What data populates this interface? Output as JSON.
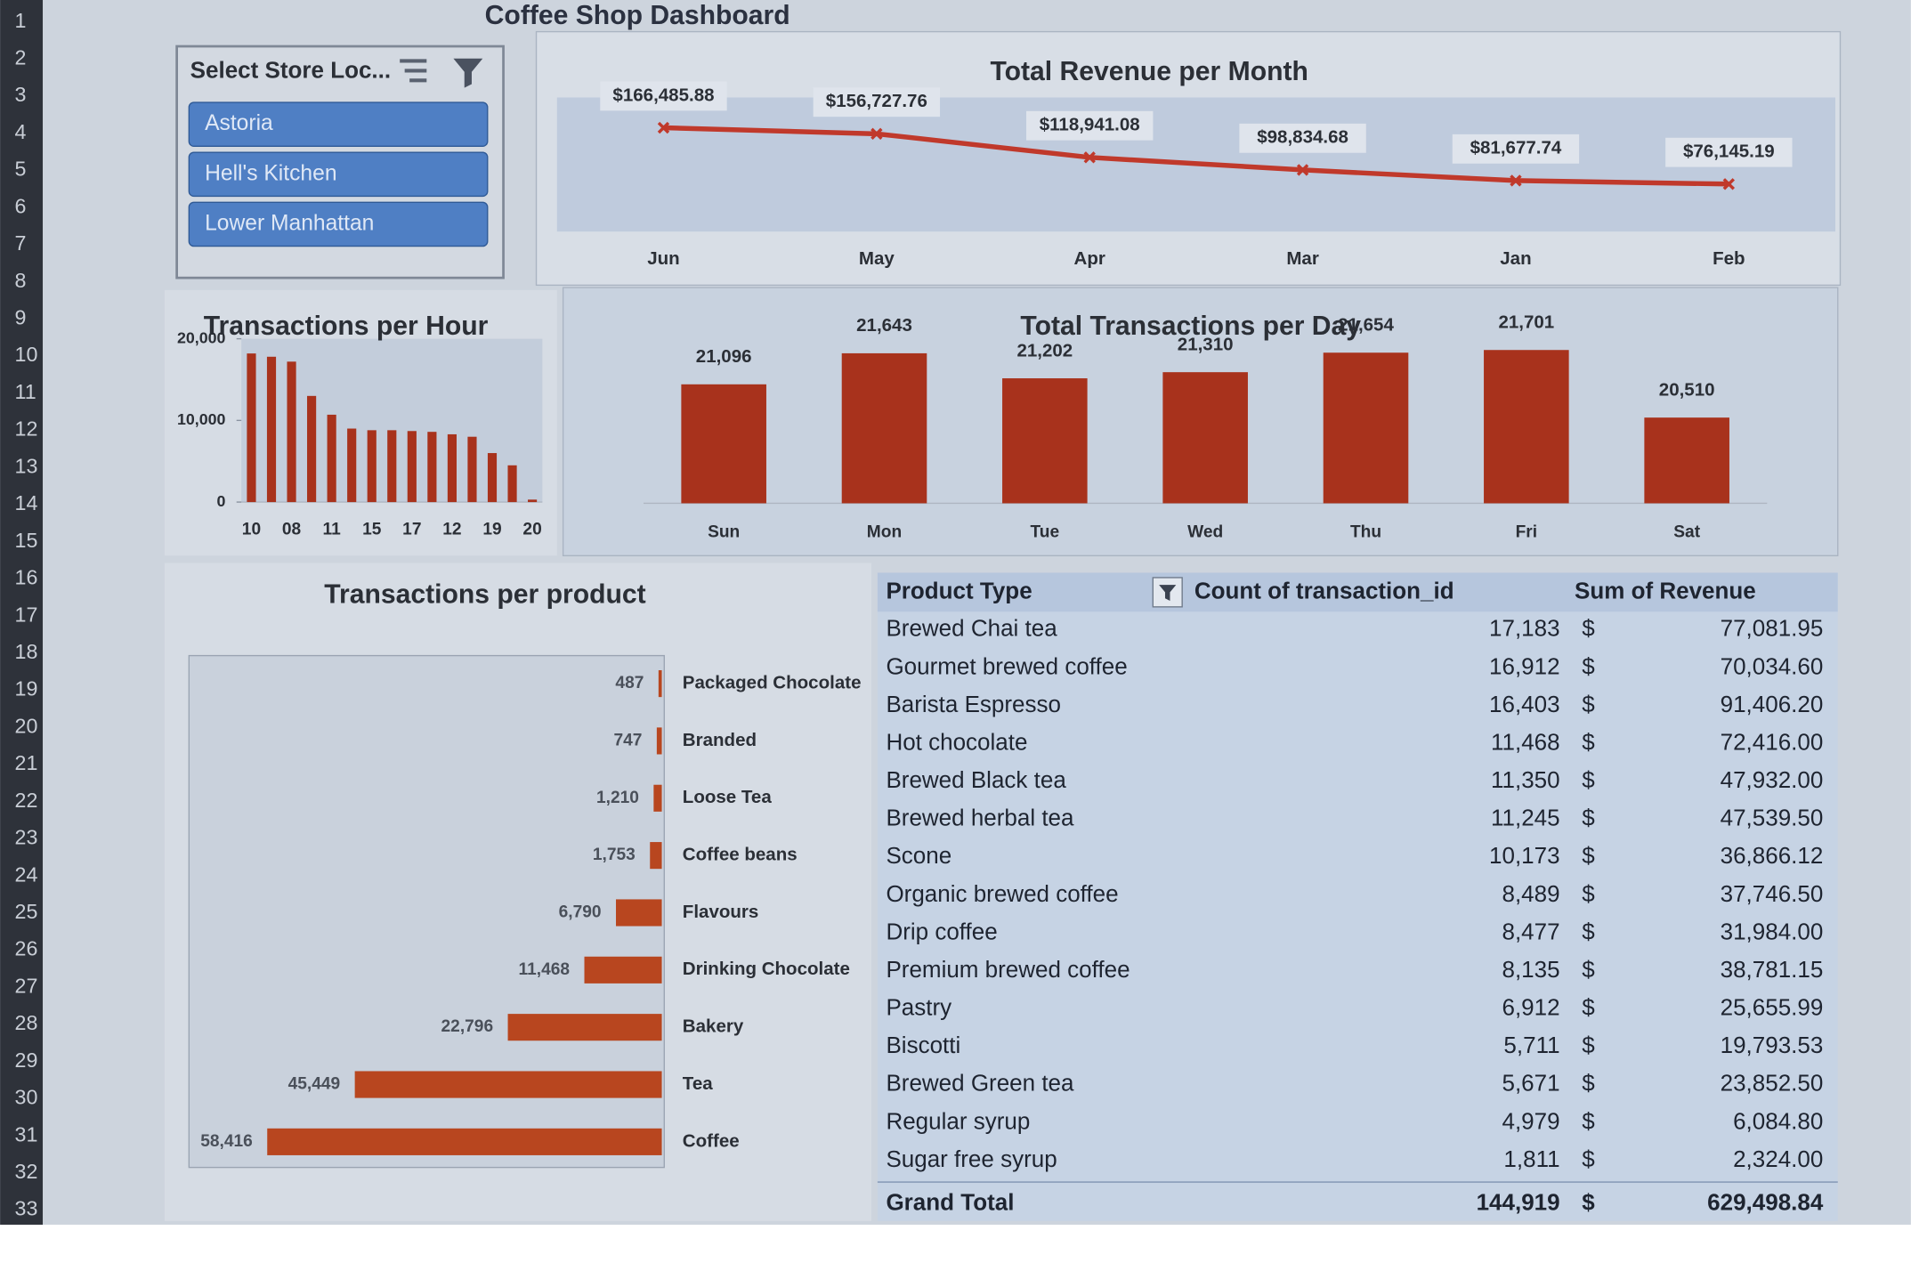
{
  "title": "Coffee Shop Dashboard",
  "row_headers": [
    1,
    2,
    3,
    4,
    5,
    6,
    7,
    8,
    9,
    10,
    11,
    12,
    13,
    14,
    15,
    16,
    17,
    18,
    19,
    20,
    21,
    22,
    23,
    24,
    25,
    26,
    27,
    28,
    29,
    30,
    31,
    32,
    33
  ],
  "slicer": {
    "title": "Select Store Loc...",
    "items": [
      "Astoria",
      "Hell's Kitchen",
      "Lower Manhattan"
    ]
  },
  "chart_data": [
    {
      "type": "line",
      "title": "Total Revenue per Month",
      "categories": [
        "Jun",
        "May",
        "Apr",
        "Mar",
        "Jan",
        "Feb"
      ],
      "values": [
        166485.88,
        156727.76,
        118941.08,
        98834.68,
        81677.74,
        76145.19
      ],
      "value_labels": [
        "$166,485.88",
        "$156,727.76",
        "$118,941.08",
        "$98,834.68",
        "$81,677.74",
        "$76,145.19"
      ],
      "color": "#c0392b",
      "ylim": [
        0,
        215000
      ]
    },
    {
      "type": "bar",
      "title": "Transactions per Hour",
      "categories": [
        "10",
        null,
        "08",
        null,
        "11",
        null,
        "15",
        null,
        "17",
        null,
        "12",
        null,
        "19",
        null,
        "20"
      ],
      "values": [
        18200,
        17800,
        17200,
        13000,
        10700,
        9000,
        8800,
        8800,
        8700,
        8600,
        8300,
        8000,
        6000,
        4500,
        300
      ],
      "color": "#a8321c",
      "ylim": [
        0,
        20000
      ],
      "yticks": [
        0,
        {
          "value": 10000,
          "label": "10,000"
        },
        {
          "value": 20000,
          "label": "20,000"
        }
      ]
    },
    {
      "type": "bar",
      "title": "Total Transactions per Day",
      "categories": [
        "Sun",
        "Mon",
        "Tue",
        "Wed",
        "Thu",
        "Fri",
        "Sat"
      ],
      "values": [
        21096,
        21643,
        21202,
        21310,
        21654,
        21701,
        20510
      ],
      "value_labels": [
        "21,096",
        "21,643",
        "21,202",
        "21,310",
        "21,654",
        "21,701",
        "20,510"
      ],
      "color": "#a8321c",
      "ylim": [
        19000,
        22500
      ]
    },
    {
      "type": "bar",
      "orientation": "horizontal",
      "x_reversed": true,
      "title": "Transactions per product",
      "categories": [
        "Packaged Chocolate",
        "Branded",
        "Loose Tea",
        "Coffee beans",
        "Flavours",
        "Drinking Chocolate",
        "Bakery",
        "Tea",
        "Coffee"
      ],
      "values": [
        487,
        747,
        1210,
        1753,
        6790,
        11468,
        22796,
        45449,
        58416
      ],
      "value_labels": [
        "487",
        "747",
        "1,210",
        "1,753",
        "6,790",
        "11,468",
        "22,796",
        "45,449",
        "58,416"
      ],
      "color": "#b8461f",
      "xlim": [
        0,
        70000
      ]
    }
  ],
  "table": {
    "columns": [
      "Product Type",
      "Count of transaction_id",
      "Sum of Revenue"
    ],
    "rows": [
      [
        "Brewed Chai tea",
        "17,183",
        "$",
        "77,081.95"
      ],
      [
        "Gourmet brewed coffee",
        "16,912",
        "$",
        "70,034.60"
      ],
      [
        "Barista Espresso",
        "16,403",
        "$",
        "91,406.20"
      ],
      [
        "Hot chocolate",
        "11,468",
        "$",
        "72,416.00"
      ],
      [
        "Brewed Black tea",
        "11,350",
        "$",
        "47,932.00"
      ],
      [
        "Brewed herbal tea",
        "11,245",
        "$",
        "47,539.50"
      ],
      [
        "Scone",
        "10,173",
        "$",
        "36,866.12"
      ],
      [
        "Organic brewed coffee",
        "8,489",
        "$",
        "37,746.50"
      ],
      [
        "Drip coffee",
        "8,477",
        "$",
        "31,984.00"
      ],
      [
        "Premium brewed coffee",
        "8,135",
        "$",
        "38,781.15"
      ],
      [
        "Pastry",
        "6,912",
        "$",
        "25,655.99"
      ],
      [
        "Biscotti",
        "5,711",
        "$",
        "19,793.53"
      ],
      [
        "Brewed Green tea",
        "5,671",
        "$",
        "23,852.50"
      ],
      [
        "Regular syrup",
        "4,979",
        "$",
        "6,084.80"
      ],
      [
        "Sugar free syrup",
        "1,811",
        "$",
        "2,324.00"
      ]
    ],
    "total": [
      "Grand Total",
      "144,919",
      "$",
      "629,498.84"
    ]
  }
}
